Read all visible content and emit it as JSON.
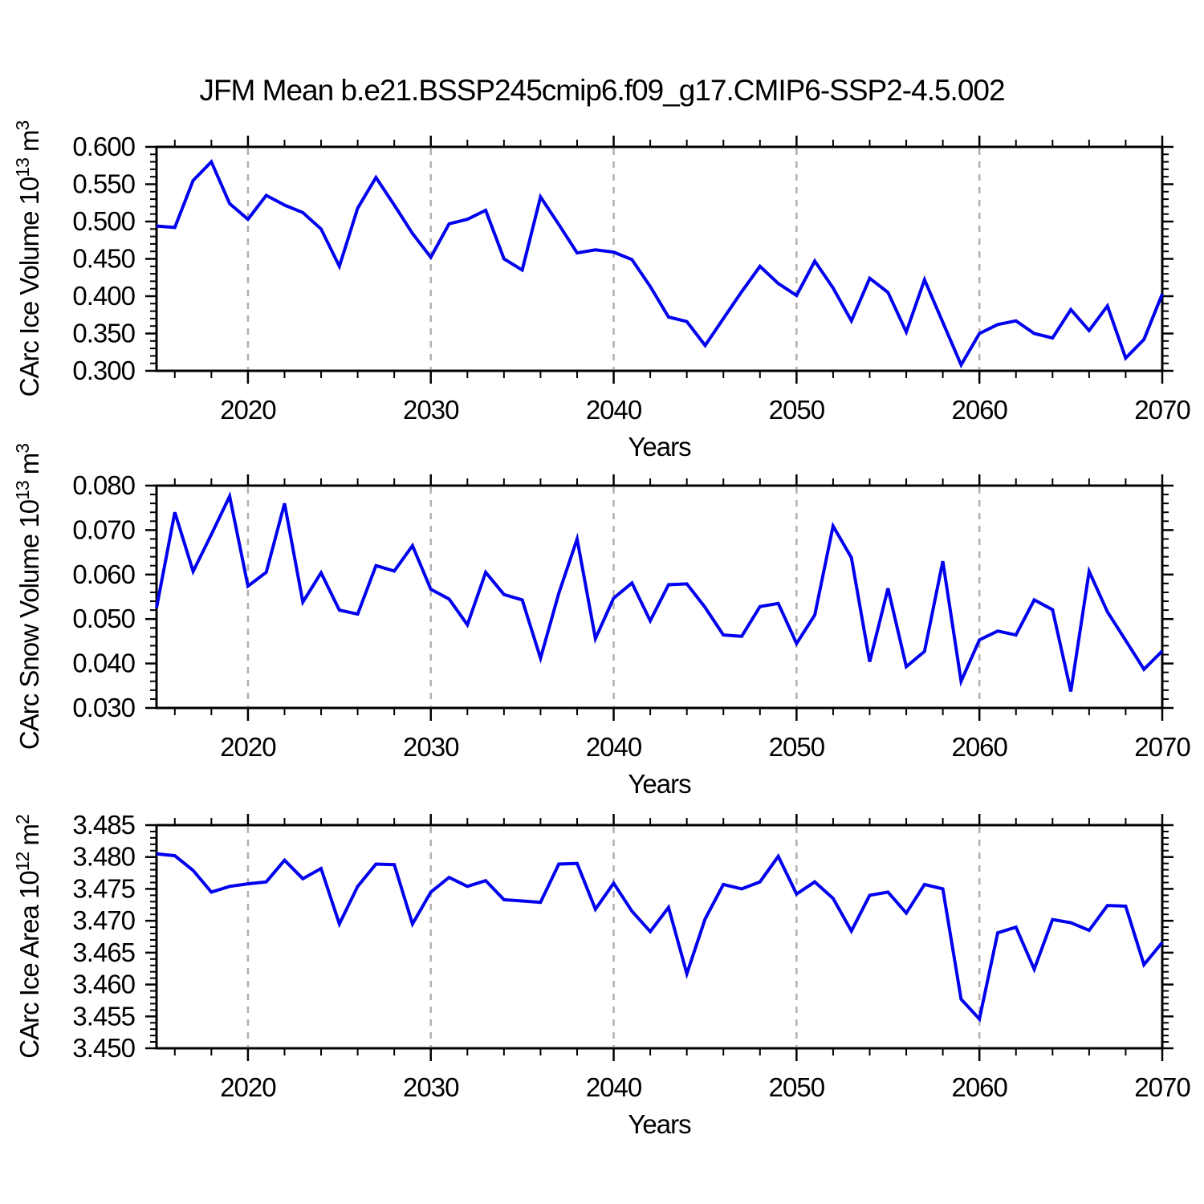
{
  "title": "JFM Mean b.e21.BSSP245cmip6.f09_g17.CMIP6-SSP2-4.5.002",
  "axis_label_x": "Years",
  "colors": {
    "series": "#0000ee",
    "grid": "#b0b0b0",
    "axis": "#000000"
  },
  "chart_data": [
    {
      "type": "line",
      "title": "",
      "ylabel": "CArc Ice Volume 10^13 m^3",
      "ylabel_parts": [
        {
          "text": "CArc Ice Volume 10",
          "sup": false
        },
        {
          "text": "13",
          "sup": true
        },
        {
          "text": " m",
          "sup": false
        },
        {
          "text": "3",
          "sup": true
        }
      ],
      "xlabel": "Years",
      "ylim": [
        0.3,
        0.6
      ],
      "ytick_step": 0.05,
      "yminor_step": 0.01,
      "ydecimals": 3,
      "xlim": [
        2015,
        2070
      ],
      "xticks": [
        2020,
        2030,
        2040,
        2050,
        2060,
        2070
      ],
      "xminor_step": 2,
      "grid_x": [
        2020,
        2030,
        2040,
        2050,
        2060
      ],
      "grid_on": true,
      "legend_position": "none",
      "x": [
        2015,
        2016,
        2017,
        2018,
        2019,
        2020,
        2021,
        2022,
        2023,
        2024,
        2025,
        2026,
        2027,
        2028,
        2029,
        2030,
        2031,
        2032,
        2033,
        2034,
        2035,
        2036,
        2037,
        2038,
        2039,
        2040,
        2041,
        2042,
        2043,
        2044,
        2045,
        2046,
        2047,
        2048,
        2049,
        2050,
        2051,
        2052,
        2053,
        2054,
        2055,
        2056,
        2057,
        2058,
        2059,
        2060,
        2061,
        2062,
        2063,
        2064,
        2065,
        2066,
        2067,
        2068,
        2069,
        2070
      ],
      "values": [
        0.494,
        0.492,
        0.555,
        0.58,
        0.524,
        0.503,
        0.535,
        0.522,
        0.512,
        0.49,
        0.44,
        0.518,
        0.559,
        0.522,
        0.484,
        0.452,
        0.497,
        0.503,
        0.515,
        0.45,
        0.435,
        0.533,
        0.496,
        0.458,
        0.462,
        0.459,
        0.449,
        0.413,
        0.372,
        0.366,
        0.334,
        0.37,
        0.406,
        0.44,
        0.417,
        0.401,
        0.447,
        0.411,
        0.367,
        0.424,
        0.405,
        0.352,
        0.422,
        0.365,
        0.308,
        0.35,
        0.362,
        0.367,
        0.35,
        0.344,
        0.382,
        0.354,
        0.387,
        0.317,
        0.342,
        0.403
      ]
    },
    {
      "type": "line",
      "title": "",
      "ylabel": "CArc Snow Volume 10^13 m^3",
      "ylabel_parts": [
        {
          "text": "CArc Snow Volume 10",
          "sup": false
        },
        {
          "text": "13",
          "sup": true
        },
        {
          "text": " m",
          "sup": false
        },
        {
          "text": "3",
          "sup": true
        }
      ],
      "xlabel": "Years",
      "ylim": [
        0.03,
        0.08
      ],
      "ytick_step": 0.01,
      "yminor_step": 0.002,
      "ydecimals": 3,
      "xlim": [
        2015,
        2070
      ],
      "xticks": [
        2020,
        2030,
        2040,
        2050,
        2060,
        2070
      ],
      "xminor_step": 2,
      "grid_x": [
        2020,
        2030,
        2040,
        2050,
        2060
      ],
      "grid_on": true,
      "legend_position": "none",
      "x": [
        2015,
        2016,
        2017,
        2018,
        2019,
        2020,
        2021,
        2022,
        2023,
        2024,
        2025,
        2026,
        2027,
        2028,
        2029,
        2030,
        2031,
        2032,
        2033,
        2034,
        2035,
        2036,
        2037,
        2038,
        2039,
        2040,
        2041,
        2042,
        2043,
        2044,
        2045,
        2046,
        2047,
        2048,
        2049,
        2050,
        2051,
        2052,
        2053,
        2054,
        2055,
        2056,
        2057,
        2058,
        2059,
        2060,
        2061,
        2062,
        2063,
        2064,
        2065,
        2066,
        2067,
        2068,
        2069,
        2070
      ],
      "values": [
        0.0525,
        0.074,
        0.0607,
        0.069,
        0.0776,
        0.0574,
        0.0605,
        0.076,
        0.0538,
        0.0604,
        0.052,
        0.0511,
        0.062,
        0.0608,
        0.0665,
        0.0567,
        0.0545,
        0.0487,
        0.0605,
        0.0555,
        0.0543,
        0.0412,
        0.0558,
        0.068,
        0.0456,
        0.0547,
        0.0581,
        0.0496,
        0.0577,
        0.0579,
        0.0526,
        0.0464,
        0.0461,
        0.0528,
        0.0535,
        0.0445,
        0.0509,
        0.0709,
        0.0638,
        0.0404,
        0.0569,
        0.0393,
        0.0427,
        0.063,
        0.036,
        0.0453,
        0.0473,
        0.0464,
        0.0543,
        0.0521,
        0.0337,
        0.0607,
        0.0516,
        0.0452,
        0.0387,
        0.0428
      ]
    },
    {
      "type": "line",
      "title": "",
      "ylabel": "CArc Ice Area 10^12 m^2",
      "ylabel_parts": [
        {
          "text": "CArc Ice Area 10",
          "sup": false
        },
        {
          "text": "12",
          "sup": true
        },
        {
          "text": " m",
          "sup": false
        },
        {
          "text": "2",
          "sup": true
        }
      ],
      "xlabel": "Years",
      "ylim": [
        3.45,
        3.485
      ],
      "ytick_step": 0.005,
      "yminor_step": 0.001,
      "ydecimals": 3,
      "xlim": [
        2015,
        2070
      ],
      "xticks": [
        2020,
        2030,
        2040,
        2050,
        2060,
        2070
      ],
      "xminor_step": 2,
      "grid_x": [
        2020,
        2030,
        2040,
        2050,
        2060
      ],
      "grid_on": true,
      "legend_position": "none",
      "x": [
        2015,
        2016,
        2017,
        2018,
        2019,
        2020,
        2021,
        2022,
        2023,
        2024,
        2025,
        2026,
        2027,
        2028,
        2029,
        2030,
        2031,
        2032,
        2033,
        2034,
        2035,
        2036,
        2037,
        2038,
        2039,
        2040,
        2041,
        2042,
        2043,
        2044,
        2045,
        2046,
        2047,
        2048,
        2049,
        2050,
        2051,
        2052,
        2053,
        2054,
        2055,
        2056,
        2057,
        2058,
        2059,
        2060,
        2061,
        2062,
        2063,
        2064,
        2065,
        2066,
        2067,
        2068,
        2069,
        2070
      ],
      "values": [
        3.4805,
        3.4802,
        3.4779,
        3.4745,
        3.4754,
        3.4758,
        3.4761,
        3.4795,
        3.4766,
        3.4782,
        3.4695,
        3.4754,
        3.4789,
        3.4788,
        3.4695,
        3.4745,
        3.4768,
        3.4754,
        3.4763,
        3.4733,
        3.4731,
        3.4729,
        3.4789,
        3.479,
        3.4718,
        3.4759,
        3.4715,
        3.4683,
        3.4721,
        3.4617,
        3.4703,
        3.4757,
        3.475,
        3.4761,
        3.4801,
        3.4742,
        3.4761,
        3.4735,
        3.4684,
        3.474,
        3.4745,
        3.4712,
        3.4757,
        3.475,
        3.4577,
        3.4546,
        3.4681,
        3.469,
        3.4624,
        3.4702,
        3.4697,
        3.4685,
        3.4724,
        3.4723,
        3.4631,
        3.4666
      ]
    }
  ]
}
